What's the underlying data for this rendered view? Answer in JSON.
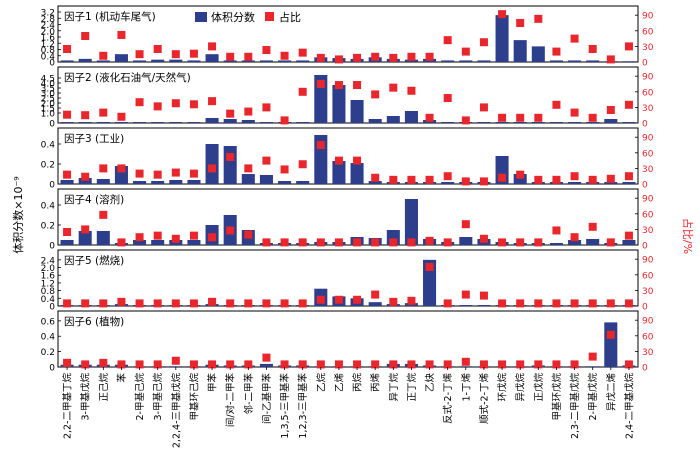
{
  "chart_data": {
    "type": "bar",
    "y_axis_left_label": "体积分数×10⁻⁹",
    "y_axis_right_label": "占比/%",
    "legend": {
      "bar_label": "体积分数",
      "marker_label": "占比",
      "placement": "top-center",
      "bar_color": "#2d3e8c",
      "marker_color": "#e8262b"
    },
    "categories": [
      "2,2-二甲基丁烷",
      "3-甲基戊烷",
      "正己烷",
      "苯",
      "2-甲基己烷",
      "3-甲基己烷",
      "2,2,4-三甲基戊烷",
      "甲基环己烷",
      "甲苯",
      "间/对-二甲苯",
      "邻-二甲苯",
      "间-乙基甲苯",
      "1,3,5-三甲基苯",
      "1,2,3-三甲基苯",
      "乙烷",
      "乙烯",
      "丙烷",
      "丙烯",
      "异丁烷",
      "正丁烷",
      "乙炔",
      "反式-2-丁烯",
      "1-丁烯",
      "顺式-2-丁烯",
      "环戊烷",
      "异戊烷",
      "正戊烷",
      "甲基环戊烷",
      "2,3-二甲基戊烷",
      "2-甲基戊烷",
      "异戊二烯",
      "2,4-二甲基戊烷"
    ],
    "panels": [
      {
        "label": "因子1 (机动车尾气)",
        "ylim": [
          0,
          3.2
        ],
        "yticks": [
          "0",
          "0.4",
          "0.8",
          "1.2",
          "1.6",
          "2.0",
          "2.4",
          "2.8",
          "3.2"
        ],
        "values": [
          0.1,
          0.2,
          0.1,
          0.5,
          0.1,
          0.15,
          0.15,
          0.1,
          0.5,
          0.1,
          0.1,
          0.1,
          0.1,
          0.1,
          0.3,
          0.25,
          0.2,
          0.3,
          0.2,
          0.15,
          0.2,
          0.1,
          0.1,
          0.1,
          3.0,
          1.4,
          1.0,
          0.1,
          0.1,
          0.1,
          0.05,
          0.05
        ],
        "shares": [
          25,
          50,
          12,
          52,
          15,
          25,
          15,
          16,
          30,
          10,
          10,
          23,
          12,
          18,
          8,
          5,
          8,
          10,
          8,
          10,
          10,
          42,
          20,
          38,
          92,
          75,
          83,
          20,
          45,
          25,
          5,
          30
        ]
      },
      {
        "label": "因子2 (液化石油气/天然气)",
        "ylim": [
          0,
          5
        ],
        "yticks": [
          "0",
          "1.0",
          "1.5",
          "2.0",
          "2.5",
          "3.0",
          "3.5",
          "4.0",
          "4.5"
        ],
        "values": [
          0.1,
          0.1,
          0.1,
          0.1,
          0.1,
          0.1,
          0.1,
          0.1,
          0.5,
          0.4,
          0.3,
          0.1,
          0.1,
          0.1,
          4.8,
          3.8,
          2.3,
          0.4,
          0.7,
          1.2,
          0.3,
          0.1,
          0.1,
          0.1,
          0.1,
          0.1,
          0.1,
          0.1,
          0.1,
          0.1,
          0.4,
          0.1
        ],
        "shares": [
          16,
          15,
          20,
          12,
          40,
          32,
          38,
          36,
          42,
          18,
          22,
          30,
          5,
          60,
          75,
          73,
          73,
          55,
          68,
          62,
          10,
          48,
          5,
          30,
          10,
          10,
          10,
          35,
          20,
          10,
          25,
          35
        ]
      },
      {
        "label": "因子3 (工业)",
        "ylim": [
          0,
          0.5
        ],
        "yticks": [
          "0",
          "0.2",
          "0.4"
        ],
        "values": [
          0.04,
          0.06,
          0.05,
          0.18,
          0.03,
          0.03,
          0.04,
          0.04,
          0.4,
          0.38,
          0.1,
          0.09,
          0.03,
          0.03,
          0.49,
          0.23,
          0.21,
          0.03,
          0.02,
          0.02,
          0.02,
          0.02,
          0.02,
          0.02,
          0.28,
          0.1,
          0.02,
          0.02,
          0.02,
          0.02,
          0.02,
          0.02
        ],
        "shares": [
          18,
          14,
          30,
          30,
          20,
          18,
          22,
          20,
          30,
          52,
          30,
          45,
          28,
          38,
          75,
          45,
          45,
          12,
          8,
          8,
          8,
          15,
          5,
          5,
          12,
          18,
          8,
          8,
          15,
          8,
          10,
          15
        ]
      },
      {
        "label": "因子4 (溶剂)",
        "ylim": [
          0,
          0.5
        ],
        "yticks": [
          "0",
          "0.2",
          "0.4"
        ],
        "values": [
          0.05,
          0.14,
          0.14,
          0.02,
          0.05,
          0.05,
          0.05,
          0.05,
          0.2,
          0.3,
          0.15,
          0.02,
          0.02,
          0.02,
          0.03,
          0.03,
          0.08,
          0.07,
          0.15,
          0.46,
          0.06,
          0.03,
          0.08,
          0.06,
          0.03,
          0.02,
          0.02,
          0.02,
          0.05,
          0.06,
          0.02,
          0.05
        ],
        "shares": [
          25,
          30,
          58,
          5,
          15,
          18,
          12,
          18,
          15,
          28,
          20,
          5,
          5,
          5,
          5,
          5,
          5,
          5,
          5,
          5,
          8,
          5,
          40,
          12,
          5,
          5,
          5,
          28,
          15,
          35,
          5,
          18
        ]
      },
      {
        "label": "因子5 (燃烧)",
        "ylim": [
          0,
          2.6
        ],
        "yticks": [
          "0",
          "0.4",
          "0.8",
          "1.2",
          "1.6",
          "2.0",
          "2.4"
        ],
        "values": [
          0.05,
          0.05,
          0.05,
          0.1,
          0.05,
          0.05,
          0.05,
          0.05,
          0.1,
          0.05,
          0.05,
          0.05,
          0.05,
          0.05,
          0.9,
          0.5,
          0.4,
          0.2,
          0.1,
          0.15,
          2.4,
          0.05,
          0.05,
          0.05,
          0.05,
          0.05,
          0.05,
          0.05,
          0.05,
          0.05,
          0.05,
          0.05
        ],
        "shares": [
          5,
          5,
          5,
          8,
          5,
          5,
          5,
          5,
          8,
          5,
          5,
          5,
          5,
          5,
          12,
          12,
          12,
          22,
          8,
          10,
          75,
          5,
          22,
          20,
          5,
          5,
          5,
          5,
          5,
          5,
          5,
          5
        ]
      },
      {
        "label": "因子6 (植物)",
        "ylim": [
          0,
          0.65
        ],
        "yticks": [
          "0",
          "0.2",
          "0.4",
          "0.6"
        ],
        "values": [
          0.03,
          0.03,
          0.03,
          0.03,
          0.01,
          0.01,
          0.01,
          0.01,
          0.03,
          0.02,
          0.02,
          0.04,
          0.02,
          0.02,
          0.01,
          0.01,
          0.01,
          0.01,
          0.04,
          0.04,
          0.02,
          0.01,
          0.01,
          0.01,
          0.01,
          0.01,
          0.02,
          0.01,
          0.01,
          0.01,
          0.58,
          0.02
        ],
        "shares": [
          8,
          5,
          8,
          5,
          5,
          5,
          12,
          5,
          5,
          5,
          5,
          18,
          5,
          5,
          5,
          5,
          5,
          5,
          5,
          5,
          5,
          5,
          10,
          5,
          5,
          5,
          5,
          5,
          5,
          20,
          62,
          5
        ]
      }
    ]
  }
}
